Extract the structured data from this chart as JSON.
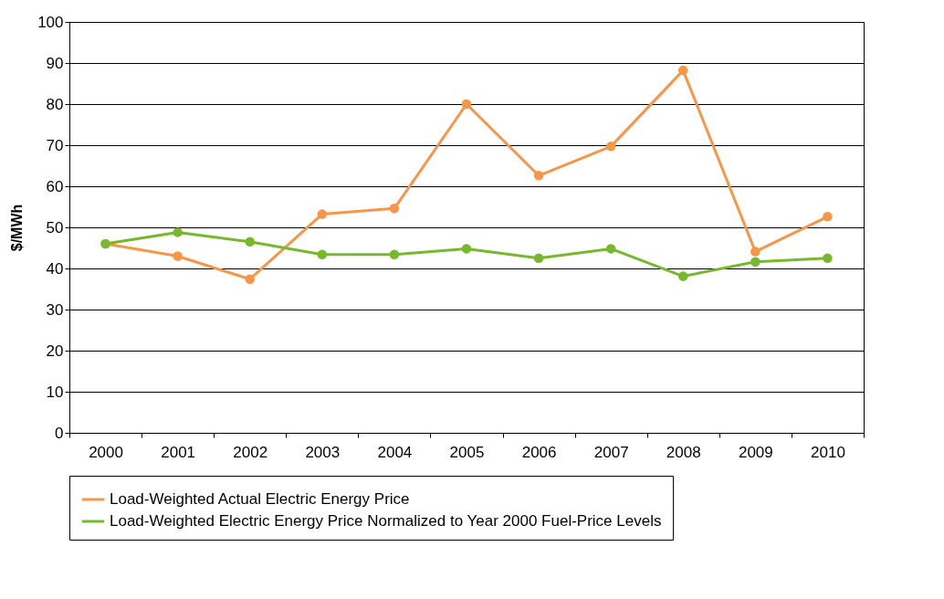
{
  "chart_data": {
    "type": "line",
    "ylabel": "$/MWh",
    "categories": [
      "2000",
      "2001",
      "2002",
      "2003",
      "2004",
      "2005",
      "2006",
      "2007",
      "2008",
      "2009",
      "2010"
    ],
    "series": [
      {
        "name": "Load-Weighted Actual Electric Energy Price",
        "color": "#f79646",
        "values": [
          46,
          43,
          37.4,
          53.2,
          54.6,
          80,
          62.6,
          69.7,
          88.2,
          44.1,
          52.6
        ]
      },
      {
        "name": "Load-Weighted Electric Energy Price Normalized to Year 2000 Fuel-Price Levels",
        "color": "#77b82f",
        "values": [
          46,
          48.8,
          46.5,
          43.4,
          43.4,
          44.8,
          42.5,
          44.8,
          38.1,
          41.6,
          42.5
        ]
      }
    ],
    "ylim": [
      0,
      100
    ],
    "yticks": [
      0,
      10,
      20,
      30,
      40,
      50,
      60,
      70,
      80,
      90,
      100
    ],
    "grid": "y",
    "legend": "bottom",
    "marker": "circle",
    "line_style": "solid"
  }
}
